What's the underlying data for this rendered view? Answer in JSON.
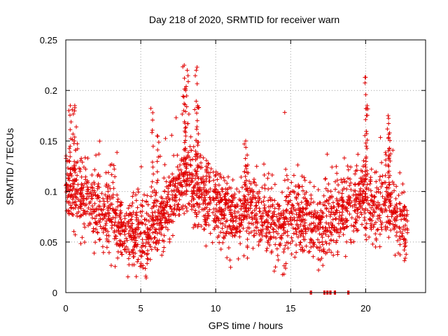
{
  "chart_data": {
    "type": "scatter",
    "title": "Day 218 of 2020, SRMTID for receiver warn",
    "xlabel": "GPS time / hours",
    "ylabel": "SRMTID / TECUs",
    "xlim": [
      0,
      24
    ],
    "ylim": [
      0,
      0.25
    ],
    "xticks": [
      0,
      5,
      10,
      15,
      20
    ],
    "yticks": [
      0,
      0.05,
      0.1,
      0.15,
      0.2,
      0.25
    ],
    "xtick_labels": [
      "0",
      "5",
      "10",
      "15",
      "20"
    ],
    "ytick_labels": [
      "0",
      "0.05",
      "0.1",
      "0.15",
      "0.2",
      "0.25"
    ],
    "grid": true,
    "marker": "plus",
    "color": "#e00000",
    "series": [
      {
        "name": "SRMTID",
        "profile_hours": [
          0,
          0.5,
          1,
          1.5,
          2,
          2.5,
          3,
          3.5,
          4,
          4.5,
          5,
          5.5,
          6,
          6.5,
          7,
          7.5,
          8,
          8.5,
          9,
          9.5,
          10,
          10.5,
          11,
          11.5,
          12,
          12.5,
          13,
          13.5,
          14,
          14.5,
          15,
          15.5,
          16,
          16.5,
          17,
          17.5,
          18,
          18.5,
          19,
          19.5,
          20,
          20.5,
          21,
          21.5,
          22,
          22.5,
          22.8
        ],
        "profile_mean": [
          0.105,
          0.1,
          0.095,
          0.088,
          0.082,
          0.078,
          0.075,
          0.068,
          0.062,
          0.058,
          0.055,
          0.058,
          0.068,
          0.075,
          0.088,
          0.1,
          0.11,
          0.1,
          0.098,
          0.092,
          0.085,
          0.08,
          0.075,
          0.072,
          0.085,
          0.08,
          0.075,
          0.07,
          0.062,
          0.068,
          0.075,
          0.078,
          0.068,
          0.058,
          0.062,
          0.068,
          0.075,
          0.08,
          0.085,
          0.088,
          0.095,
          0.085,
          0.082,
          0.092,
          0.075,
          0.065,
          0.06
        ],
        "peaks": [
          {
            "x": 0.3,
            "y": 0.185
          },
          {
            "x": 0.6,
            "y": 0.185
          },
          {
            "x": 5.8,
            "y": 0.178
          },
          {
            "x": 6.1,
            "y": 0.155
          },
          {
            "x": 7.9,
            "y": 0.225
          },
          {
            "x": 8.0,
            "y": 0.2
          },
          {
            "x": 8.1,
            "y": 0.22
          },
          {
            "x": 8.7,
            "y": 0.22
          },
          {
            "x": 8.8,
            "y": 0.185
          },
          {
            "x": 12.0,
            "y": 0.15
          },
          {
            "x": 20.0,
            "y": 0.213
          },
          {
            "x": 20.1,
            "y": 0.185
          },
          {
            "x": 21.5,
            "y": 0.175
          },
          {
            "x": 21.6,
            "y": 0.158
          }
        ],
        "zero_points_x": [
          16.3,
          17.2,
          17.4,
          17.6,
          17.9,
          18.8
        ]
      }
    ]
  }
}
